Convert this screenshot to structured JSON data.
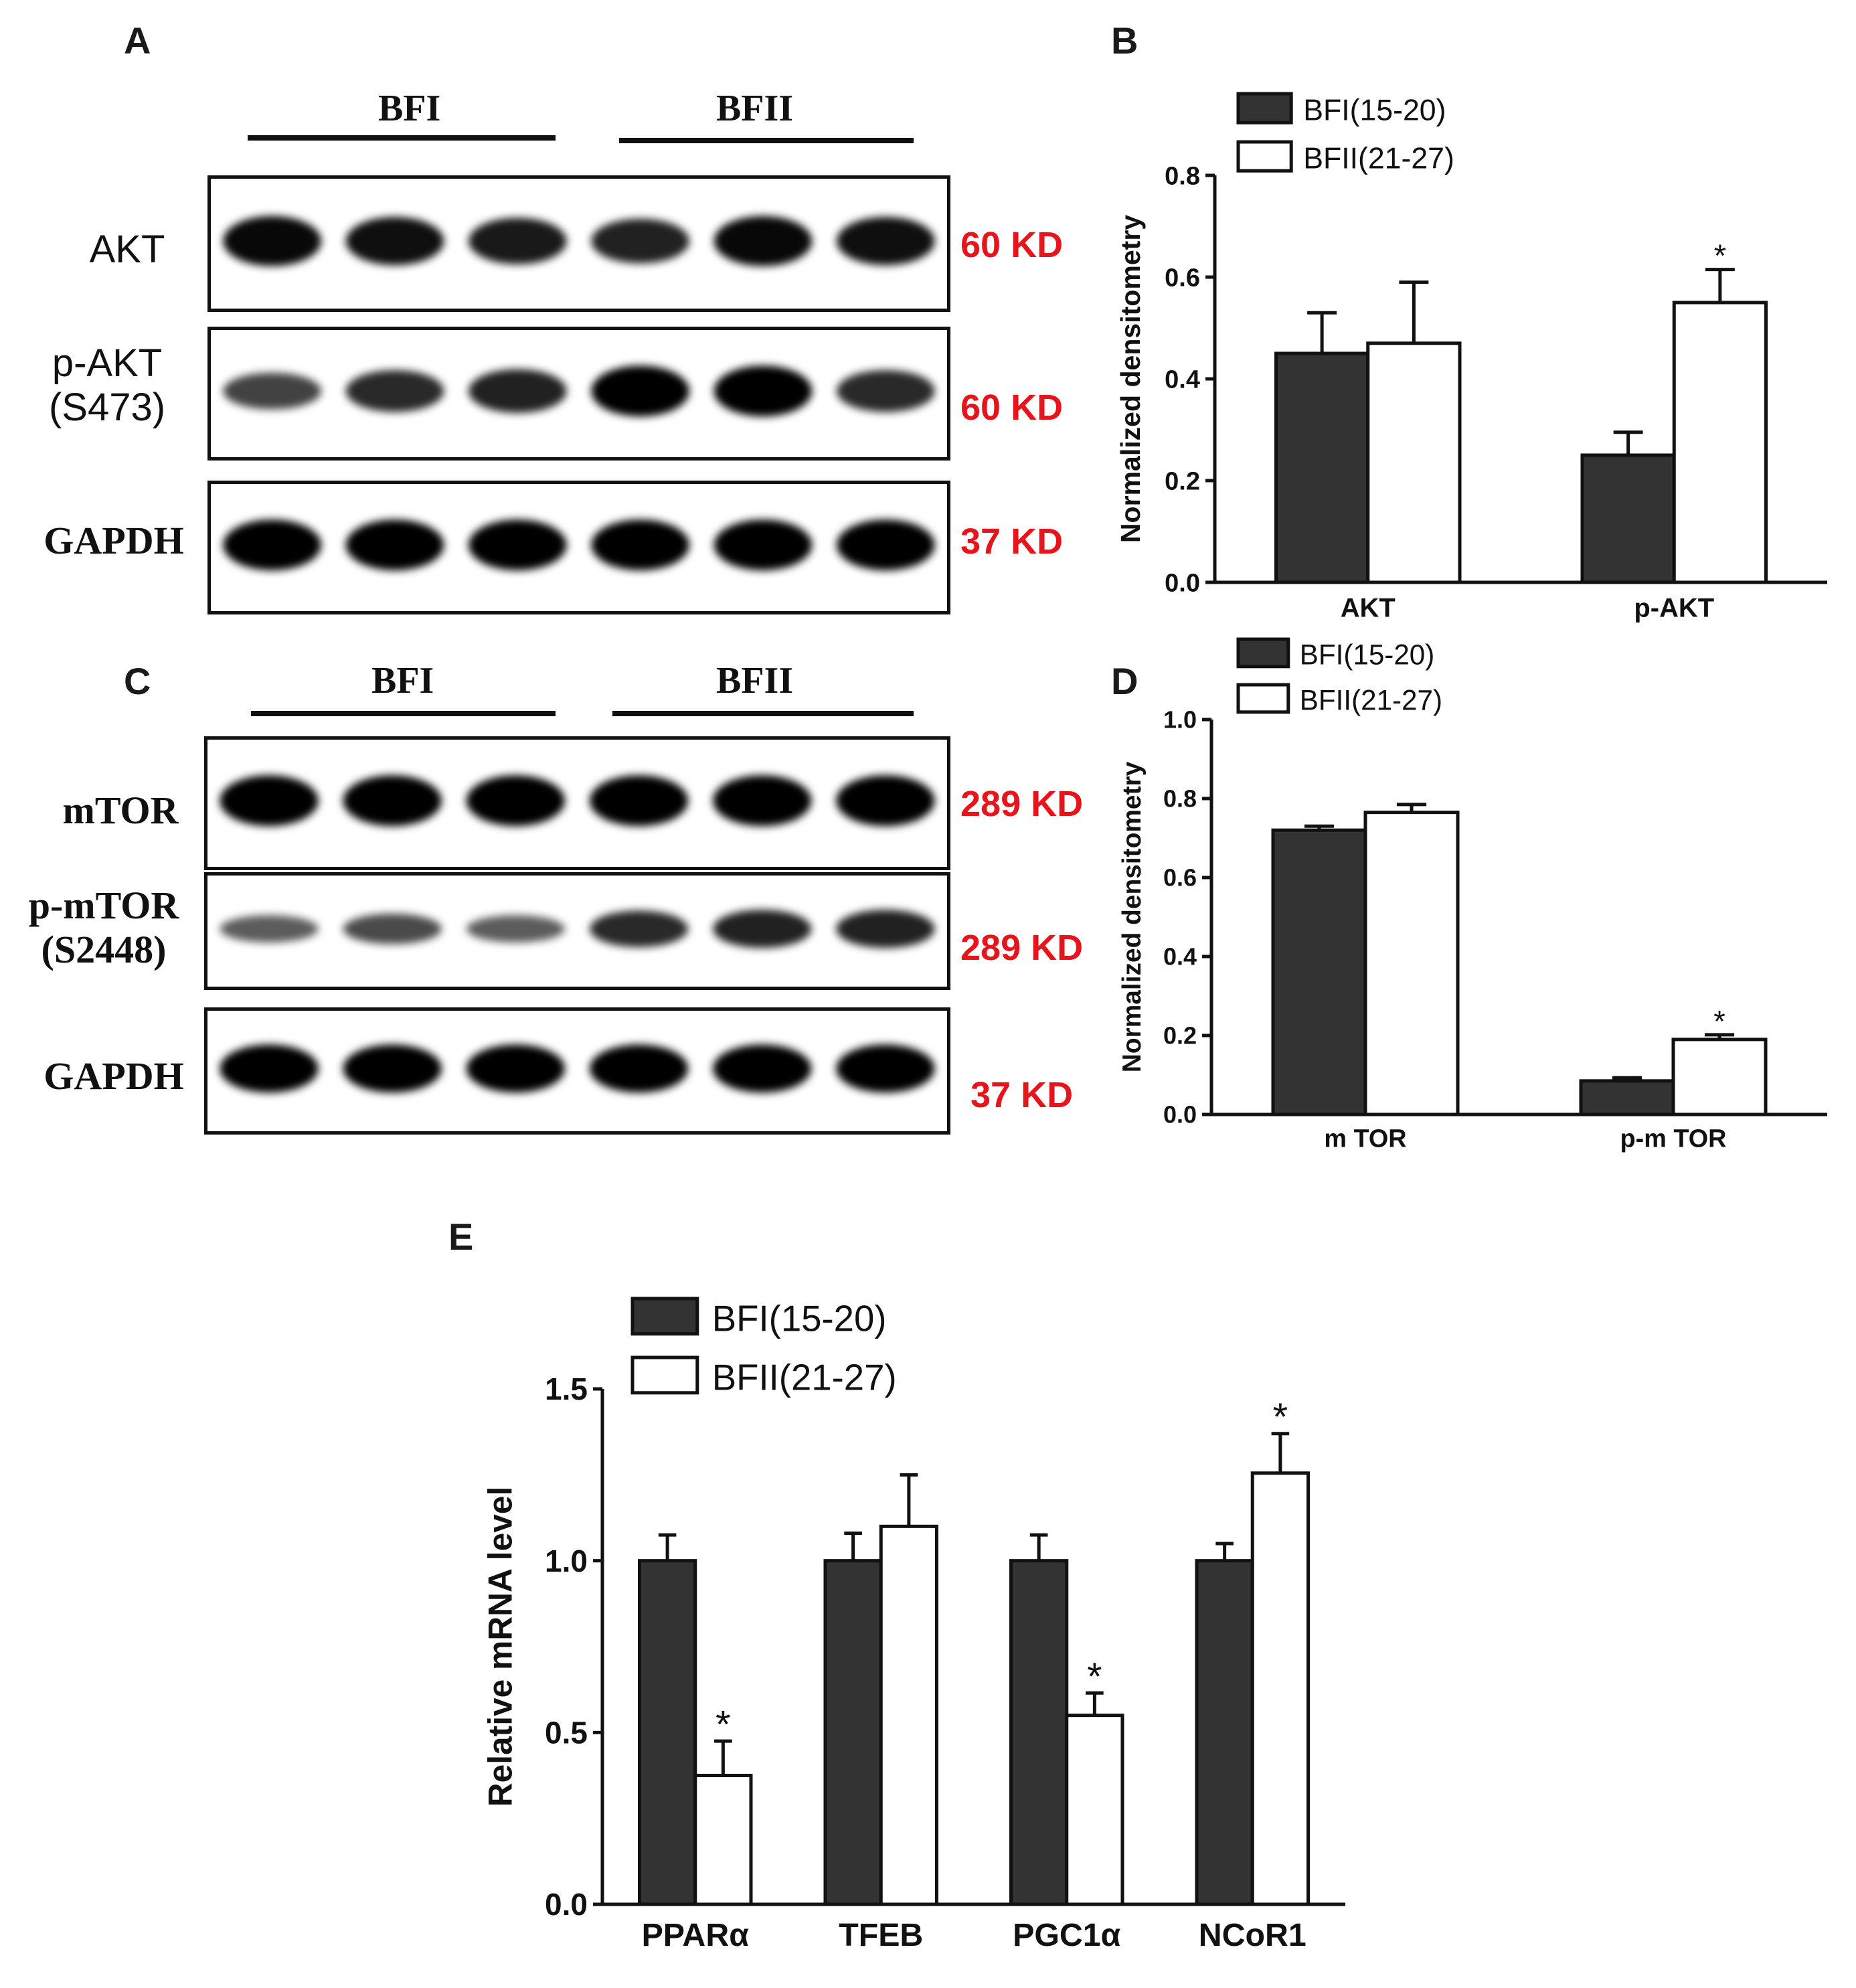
{
  "panels": {
    "a": {
      "letter": "A",
      "groups": [
        "BFI",
        "BFII"
      ],
      "rows": [
        {
          "label_lines": [
            "AKT"
          ],
          "kd": "60 KD",
          "band_strength": [
            0.95,
            0.9,
            0.85,
            0.8,
            0.95,
            0.9
          ]
        },
        {
          "label_lines": [
            "p-AKT",
            "(S473)"
          ],
          "kd": "60 KD",
          "band_strength": [
            0.6,
            0.75,
            0.8,
            1.0,
            1.0,
            0.75
          ]
        },
        {
          "label_lines": [
            "GAPDH"
          ],
          "kd": "37 KD",
          "band_strength": [
            1.0,
            1.0,
            1.0,
            1.0,
            1.0,
            1.0
          ]
        }
      ]
    },
    "c": {
      "letter": "C",
      "groups": [
        "BFI",
        "BFII"
      ],
      "rows": [
        {
          "label_lines": [
            "mTOR"
          ],
          "kd": "289 KD",
          "band_strength": [
            1.0,
            1.0,
            1.0,
            1.0,
            1.0,
            1.0
          ]
        },
        {
          "label_lines": [
            "p-mTOR",
            "(S2448)"
          ],
          "kd": "289 KD",
          "band_strength": [
            0.45,
            0.55,
            0.45,
            0.75,
            0.8,
            0.8
          ]
        },
        {
          "label_lines": [
            "GAPDH"
          ],
          "kd": "37 KD",
          "band_strength": [
            1.0,
            1.0,
            1.0,
            1.0,
            1.0,
            1.0
          ]
        }
      ]
    }
  },
  "chart_data": [
    {
      "panel": "B",
      "type": "bar",
      "categories": [
        "AKT",
        "p-AKT"
      ],
      "ylabel": "Normalized densitometry",
      "ylim": [
        0,
        0.8
      ],
      "yticks": [
        "0.0",
        "0.2",
        "0.4",
        "0.6",
        "0.8"
      ],
      "series": [
        {
          "name": "BFI(15-20)",
          "color": "#333333",
          "values": [
            0.45,
            0.25
          ],
          "errors": [
            0.08,
            0.045
          ],
          "stars": [
            "",
            ""
          ]
        },
        {
          "name": "BFII(21-27)",
          "color": "#ffffff",
          "values": [
            0.47,
            0.55
          ],
          "errors": [
            0.12,
            0.065
          ],
          "stars": [
            "",
            "*"
          ]
        }
      ],
      "legend": "top-left"
    },
    {
      "panel": "D",
      "type": "bar",
      "categories": [
        "m TOR",
        "p-m TOR"
      ],
      "ylabel": "Normalized densitometry",
      "ylim": [
        0,
        1.0
      ],
      "yticks": [
        "0.0",
        "0.2",
        "0.4",
        "0.6",
        "0.8",
        "1.0"
      ],
      "series": [
        {
          "name": "BFI(15-20)",
          "color": "#333333",
          "values": [
            0.72,
            0.085
          ],
          "errors": [
            0.01,
            0.008
          ],
          "stars": [
            "",
            ""
          ]
        },
        {
          "name": "BFII(21-27)",
          "color": "#ffffff",
          "values": [
            0.765,
            0.19
          ],
          "errors": [
            0.02,
            0.012
          ],
          "stars": [
            "",
            "*"
          ]
        }
      ],
      "legend": "top-left"
    },
    {
      "panel": "E",
      "type": "bar",
      "categories": [
        "PPARα",
        "TFEB",
        "PGC1α",
        "NCoR1"
      ],
      "ylabel": "Relative mRNA level",
      "ylim": [
        0,
        1.5
      ],
      "yticks": [
        "0.0",
        "0.5",
        "1.0",
        "1.5"
      ],
      "series": [
        {
          "name": "BFI(15-20)",
          "color": "#333333",
          "values": [
            1.0,
            1.0,
            1.0,
            1.0
          ],
          "errors": [
            0.075,
            0.08,
            0.075,
            0.05
          ],
          "stars": [
            "",
            "",
            "",
            ""
          ]
        },
        {
          "name": "BFII(21-27)",
          "color": "#ffffff",
          "values": [
            0.375,
            1.1,
            0.55,
            1.255
          ],
          "errors": [
            0.1,
            0.15,
            0.065,
            0.115
          ],
          "stars": [
            "*",
            "",
            "*",
            "*"
          ]
        }
      ],
      "legend": "top-left"
    }
  ]
}
